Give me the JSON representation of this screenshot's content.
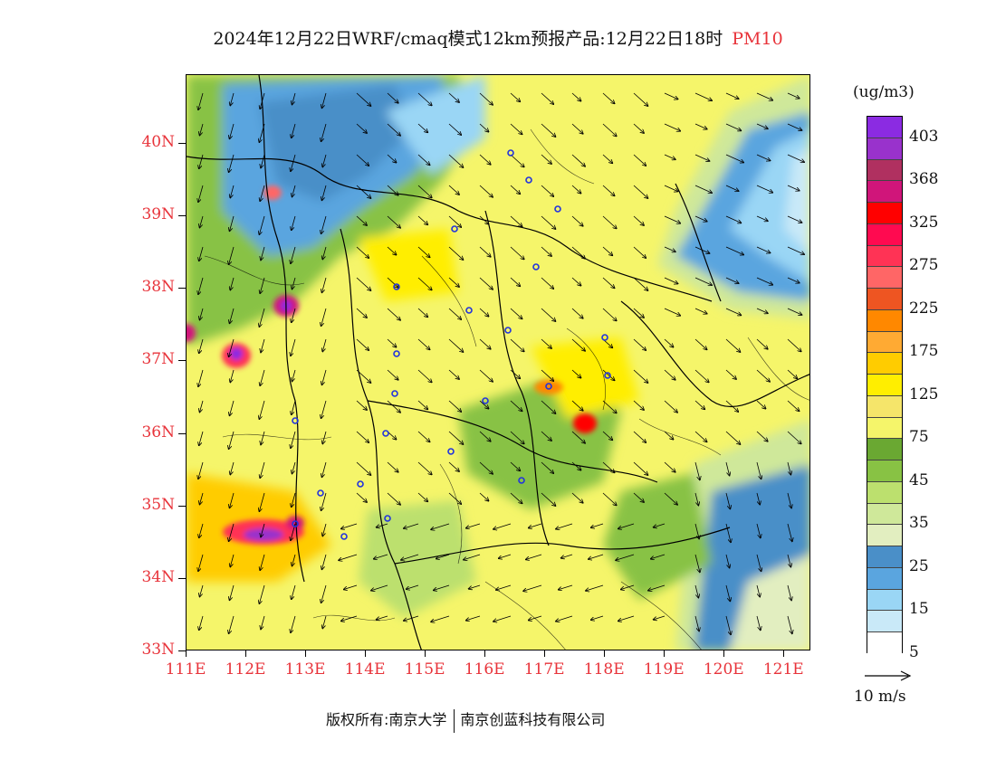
{
  "header": {
    "title": "2024年12月22日WRF/cmaq模式12km预报产品:12月22日18时",
    "product": "PM10"
  },
  "map": {
    "lon_range": [
      111,
      121.45
    ],
    "lat_range": [
      33,
      40.95
    ],
    "lat_labels": [
      "33N",
      "34N",
      "35N",
      "36N",
      "37N",
      "38N",
      "39N",
      "40N"
    ],
    "lon_labels": [
      "111E",
      "112E",
      "113E",
      "114E",
      "115E",
      "116E",
      "117E",
      "118E",
      "119E",
      "120E",
      "121E"
    ]
  },
  "legend": {
    "unit": "(ug/m3)",
    "colors": [
      "#8b2be2",
      "#9932cc",
      "#b03060",
      "#d0157a",
      "#ff0000",
      "#ff0a50",
      "#ff3355",
      "#ff6666",
      "#ee5522",
      "#ff8800",
      "#ffaa33",
      "#ffcc00",
      "#ffee00",
      "#f5e56a",
      "#f5f56a",
      "#6aa832",
      "#88c244",
      "#bce06e",
      "#cfe89a",
      "#e2eec0",
      "#4a8fc8",
      "#5aa5df",
      "#9ad6f5",
      "#c9e9f8",
      "#ffffff"
    ],
    "ticks": [
      "403",
      "368",
      "325",
      "275",
      "225",
      "175",
      "125",
      "75",
      "45",
      "35",
      "25",
      "15",
      "5"
    ]
  },
  "wind_reference": {
    "label": "10 m/s"
  },
  "footer": {
    "copyright_left": "版权所有:南京大学",
    "copyright_right": "南京创蓝科技有限公司"
  }
}
